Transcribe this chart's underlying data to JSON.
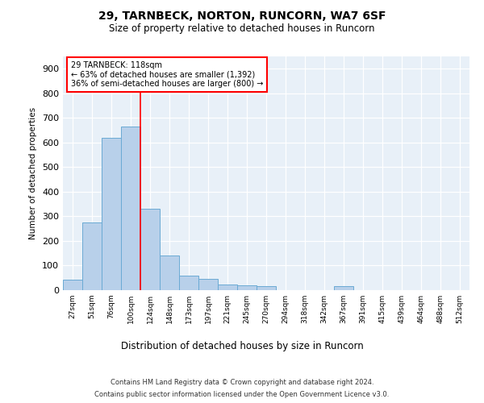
{
  "title1": "29, TARNBECK, NORTON, RUNCORN, WA7 6SF",
  "title2": "Size of property relative to detached houses in Runcorn",
  "xlabel": "Distribution of detached houses by size in Runcorn",
  "ylabel": "Number of detached properties",
  "categories": [
    "27sqm",
    "51sqm",
    "76sqm",
    "100sqm",
    "124sqm",
    "148sqm",
    "173sqm",
    "197sqm",
    "221sqm",
    "245sqm",
    "270sqm",
    "294sqm",
    "318sqm",
    "342sqm",
    "367sqm",
    "391sqm",
    "415sqm",
    "439sqm",
    "464sqm",
    "488sqm",
    "512sqm"
  ],
  "values": [
    42,
    275,
    620,
    665,
    330,
    140,
    60,
    47,
    22,
    20,
    18,
    0,
    0,
    0,
    18,
    0,
    0,
    0,
    0,
    0,
    0
  ],
  "bar_color": "#b8d0ea",
  "bar_edge_color": "#6aaad4",
  "bg_color": "#e8f0f8",
  "annotation_line1": "29 TARNBECK: 118sqm",
  "annotation_line2": "← 63% of detached houses are smaller (1,392)",
  "annotation_line3": "36% of semi-detached houses are larger (800) →",
  "annotation_box_color": "white",
  "annotation_box_edge_color": "red",
  "vline_x": 3.5,
  "vline_color": "red",
  "yticks": [
    0,
    100,
    200,
    300,
    400,
    500,
    600,
    700,
    800,
    900
  ],
  "ylim": [
    0,
    950
  ],
  "xlim_min": -0.5,
  "xlim_max": 20.5,
  "footer1": "Contains HM Land Registry data © Crown copyright and database right 2024.",
  "footer2": "Contains public sector information licensed under the Open Government Licence v3.0."
}
